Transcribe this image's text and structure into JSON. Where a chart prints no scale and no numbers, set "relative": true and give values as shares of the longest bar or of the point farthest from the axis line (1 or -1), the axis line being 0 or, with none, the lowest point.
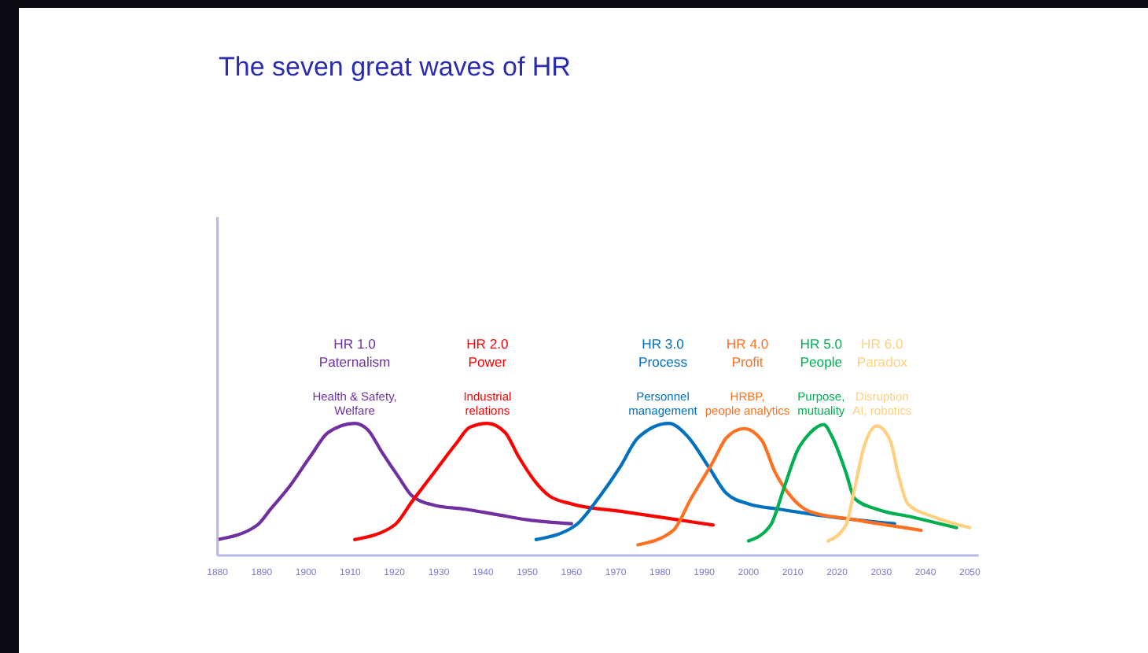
{
  "chart_data": {
    "type": "line",
    "title": "The seven great waves of HR",
    "relative": true,
    "xlim": [
      1880,
      2052
    ],
    "xticks": [
      1880,
      1890,
      1900,
      1910,
      1920,
      1930,
      1940,
      1950,
      1960,
      1970,
      1980,
      1990,
      2000,
      2010,
      2020,
      2030,
      2040,
      2050
    ],
    "series": [
      {
        "name": "HR 1.0\nPaternalism",
        "color": "#7030a0",
        "x": [
          1880,
          1889,
          1892,
          1896,
          1901,
          1905,
          1911,
          1914,
          1917,
          1921,
          1924,
          1929,
          1936,
          1943,
          1950,
          1960
        ],
        "values": [
          0.12,
          0.23,
          0.35,
          0.51,
          0.75,
          0.93,
          1.0,
          0.95,
          0.79,
          0.59,
          0.45,
          0.38,
          0.35,
          0.31,
          0.27,
          0.24
        ]
      },
      {
        "name": "HR 2.0\nPower",
        "color": "#ff0000",
        "x": [
          1911,
          1920,
          1924,
          1929,
          1934,
          1937,
          1941,
          1945,
          1948,
          1952,
          1955,
          1960,
          1972,
          1984,
          1992
        ],
        "values": [
          0.12,
          0.23,
          0.41,
          0.63,
          0.85,
          0.97,
          1.0,
          0.93,
          0.75,
          0.55,
          0.45,
          0.39,
          0.33,
          0.27,
          0.23
        ]
      },
      {
        "name": "HR 3.0\nProcess",
        "color": "#0070c0",
        "x": [
          1952,
          1961,
          1966,
          1971,
          1975,
          1982,
          1986,
          1991,
          1995,
          2000,
          2007,
          2019,
          2033
        ],
        "values": [
          0.12,
          0.23,
          0.43,
          0.67,
          0.89,
          1.0,
          0.91,
          0.67,
          0.47,
          0.39,
          0.35,
          0.29,
          0.24
        ]
      },
      {
        "name": "HR 4.0\nProfit",
        "color": "#ff7020",
        "x": [
          1975,
          1983,
          1987,
          1992,
          1995,
          1999,
          2003,
          2006,
          2010,
          2014,
          2024,
          2039
        ],
        "values": [
          0.08,
          0.19,
          0.43,
          0.71,
          0.89,
          0.96,
          0.87,
          0.63,
          0.43,
          0.33,
          0.27,
          0.19
        ]
      },
      {
        "name": "HR 5.0\nPeople",
        "color": "#00b050",
        "x": [
          2000,
          2005,
          2008,
          2011,
          2014,
          2017,
          2019,
          2022,
          2024,
          2029,
          2037,
          2047
        ],
        "values": [
          0.11,
          0.23,
          0.51,
          0.79,
          0.93,
          0.99,
          0.89,
          0.63,
          0.43,
          0.35,
          0.29,
          0.21
        ]
      },
      {
        "name": "HR 6.0\nParadox",
        "color": "#ffd080",
        "x": [
          2018,
          2022,
          2024,
          2026,
          2029,
          2032,
          2034,
          2036,
          2042,
          2050
        ],
        "values": [
          0.11,
          0.23,
          0.51,
          0.81,
          0.98,
          0.87,
          0.59,
          0.39,
          0.29,
          0.21
        ]
      }
    ],
    "annotations": [
      "Health & Safety,\nWelfare",
      "Industrial\nrelations",
      "Personnel\nmanagement",
      "HRBP,\npeople analytics",
      "Purpose,\nmutuality",
      "Disruption\nAI, robotics"
    ]
  }
}
